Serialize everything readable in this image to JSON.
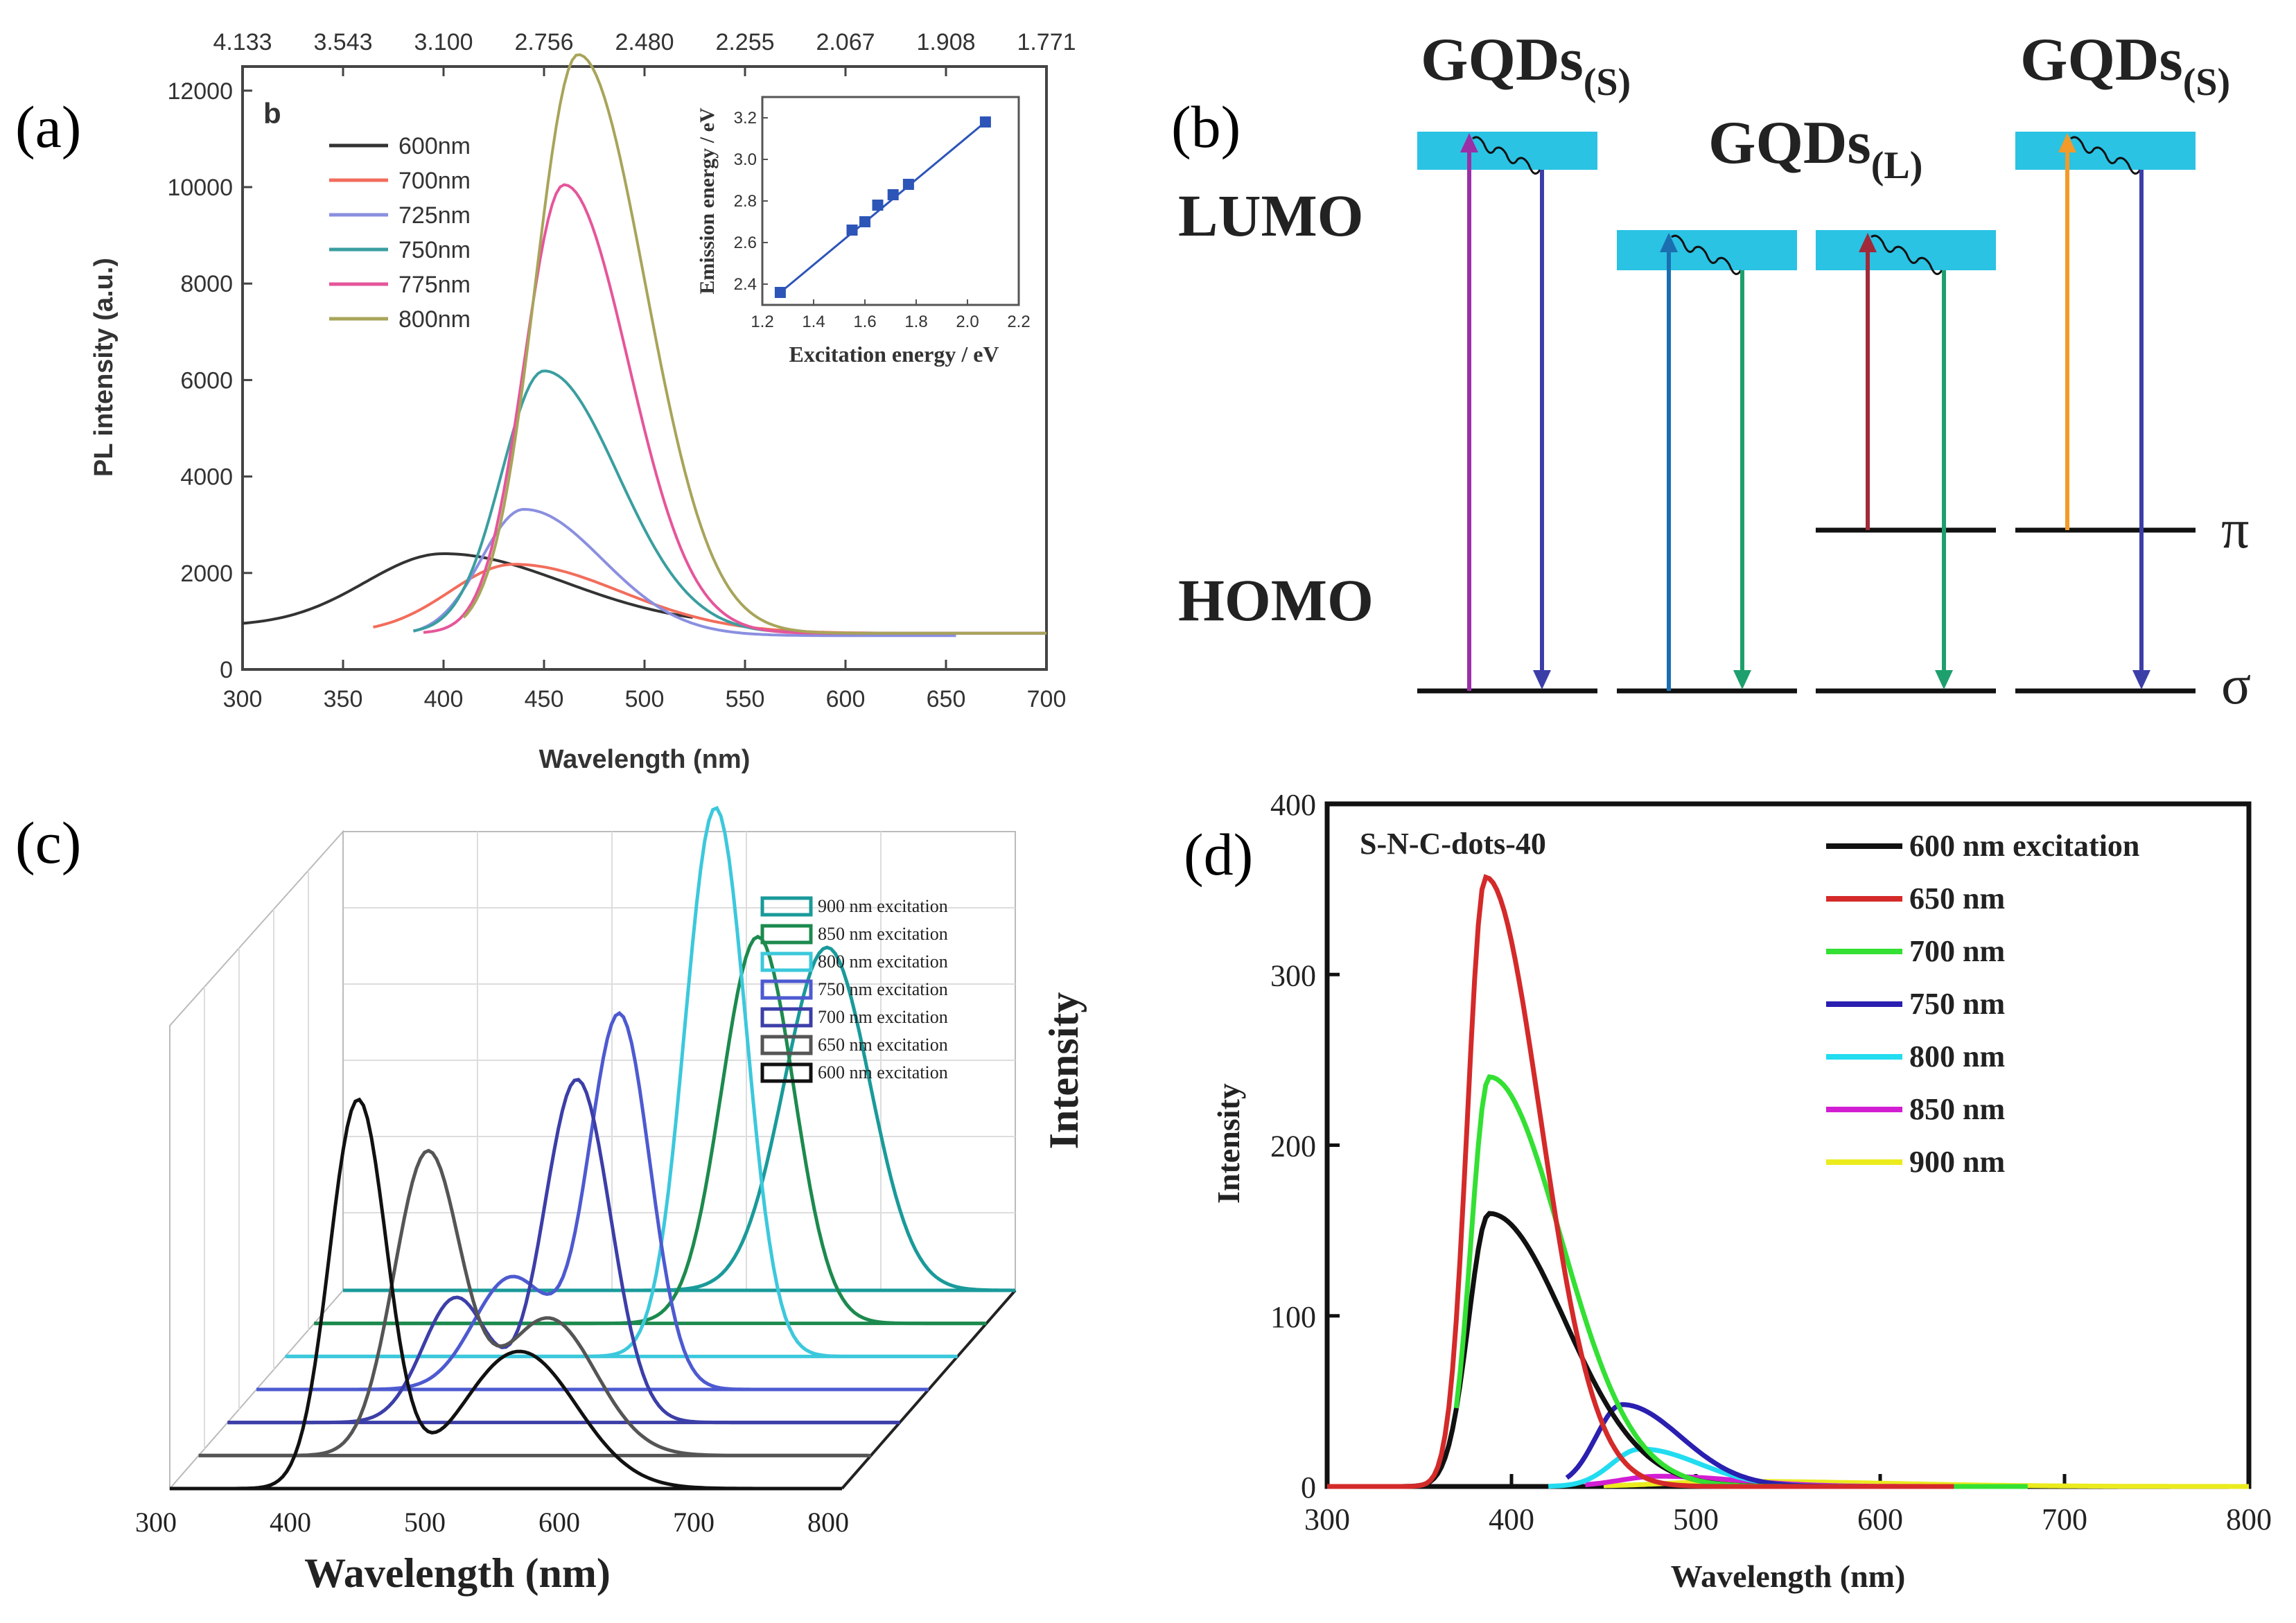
{
  "panel_labels": {
    "a": "(a)",
    "b": "(b)",
    "c": "(c)",
    "d": "(d)"
  },
  "colors": {
    "axis": "#333333",
    "cyan_band": "#2ac3e3",
    "level_line": "#111111"
  },
  "chart_data": [
    {
      "id": "a",
      "type": "line",
      "inner_label": "b",
      "xlabel": "Wavelength (nm)",
      "ylabel": "PL intensity (a.u.)",
      "xlim": [
        300,
        700
      ],
      "ylim": [
        0,
        12500
      ],
      "xticks": [
        "300",
        "350",
        "400",
        "450",
        "500",
        "550",
        "600",
        "650",
        "700"
      ],
      "yticks": [
        "0",
        "2000",
        "4000",
        "6000",
        "8000",
        "10000",
        "12000"
      ],
      "top_axis_ticks": [
        "4.133",
        "3.543",
        "3.100",
        "2.756",
        "2.480",
        "2.255",
        "2.067",
        "1.908",
        "1.771"
      ],
      "series": [
        {
          "name": "600nm",
          "color": "#333333",
          "start": 300,
          "end": 525,
          "peak": 400,
          "amp": 1500,
          "base": 900,
          "wL": 55,
          "wR": 85
        },
        {
          "name": "700nm",
          "color": "#f26d5b",
          "start": 365,
          "end": 700,
          "peak": 435,
          "amp": 1430,
          "base": 750,
          "wL": 45,
          "wR": 75
        },
        {
          "name": "725nm",
          "color": "#8b8fe0",
          "start": 385,
          "end": 655,
          "peak": 440,
          "amp": 2620,
          "base": 700,
          "wL": 30,
          "wR": 55
        },
        {
          "name": "750nm",
          "color": "#3a9ea0",
          "start": 385,
          "end": 700,
          "peak": 450,
          "amp": 5440,
          "base": 750,
          "wL": 30,
          "wR": 52
        },
        {
          "name": "775nm",
          "color": "#e6559a",
          "start": 390,
          "end": 700,
          "peak": 460,
          "amp": 9300,
          "base": 750,
          "wL": 28,
          "wR": 45
        },
        {
          "name": "800nm",
          "color": "#a8a45a",
          "start": 410,
          "end": 700,
          "peak": 467,
          "amp": 12000,
          "base": 750,
          "wL": 30,
          "wR": 47
        }
      ],
      "inset": {
        "type": "scatter",
        "xlabel": "Excitation energy / eV",
        "ylabel": "Emission energy / eV",
        "xlim": [
          1.2,
          2.2
        ],
        "ylim": [
          2.3,
          3.3
        ],
        "xticks": [
          "1.2",
          "1.4",
          "1.6",
          "1.8",
          "2.0",
          "2.2"
        ],
        "yticks": [
          "2.4",
          "2.6",
          "2.8",
          "3.0",
          "3.2"
        ],
        "x": [
          1.27,
          1.55,
          1.6,
          1.65,
          1.71,
          1.77,
          2.07
        ],
        "y": [
          2.36,
          2.66,
          2.7,
          2.78,
          2.83,
          2.88,
          3.18
        ],
        "color": "#2d55b8"
      }
    },
    {
      "id": "c",
      "type": "line",
      "subtype": "3d-waterfall",
      "xlabel": "Wavelength (nm)",
      "zlabel": "Intensity",
      "xlim": [
        300,
        800
      ],
      "xticks": [
        "300",
        "400",
        "500",
        "600",
        "700",
        "800"
      ],
      "series": [
        {
          "name": "900 nm excitation",
          "color": "#1a9a9a",
          "peaks": [
            [
              660,
              0.55,
              45
            ]
          ]
        },
        {
          "name": "850 nm excitation",
          "color": "#1c8a4e",
          "peaks": [
            [
              630,
              0.62,
              38
            ]
          ]
        },
        {
          "name": "800 nm excitation",
          "color": "#3cc8dc",
          "peaks": [
            [
              620,
              0.88,
              32
            ]
          ]
        },
        {
          "name": "750 nm excitation",
          "color": "#4d5ad0",
          "peaks": [
            [
              570,
              0.6,
              32
            ],
            [
              490,
              0.18,
              40
            ]
          ]
        },
        {
          "name": "700 nm excitation",
          "color": "#3c3ea8",
          "peaks": [
            [
              560,
              0.55,
              35
            ],
            [
              470,
              0.2,
              35
            ]
          ]
        },
        {
          "name": "650 nm excitation",
          "color": "#555555",
          "peaks": [
            [
              470,
              0.48,
              35
            ],
            [
              560,
              0.22,
              50
            ]
          ]
        },
        {
          "name": "600 nm excitation",
          "color": "#111111",
          "peaks": [
            [
              440,
              0.62,
              30
            ],
            [
              560,
              0.22,
              60
            ]
          ]
        }
      ]
    },
    {
      "id": "d",
      "type": "line",
      "title": "S-N-C-dots-40",
      "xlabel": "Wavelength (nm)",
      "ylabel": "Intensity",
      "xlim": [
        300,
        800
      ],
      "ylim": [
        0,
        400
      ],
      "xticks": [
        "300",
        "400",
        "500",
        "600",
        "700",
        "800"
      ],
      "yticks": [
        "0",
        "100",
        "200",
        "300",
        "400"
      ],
      "series": [
        {
          "name": "600 nm excitation",
          "color": "#111111",
          "start": 300,
          "end": 640,
          "peak": 388,
          "amp": 160,
          "wL": 16,
          "wR": 58
        },
        {
          "name": "650 nm",
          "color": "#d42a2a",
          "start": 300,
          "end": 640,
          "peak": 386,
          "amp": 357,
          "wL": 14,
          "wR": 42
        },
        {
          "name": "700 nm",
          "color": "#33e033",
          "start": 370,
          "end": 680,
          "peak": 388,
          "amp": 240,
          "wL": 14,
          "wR": 55
        },
        {
          "name": "750 nm",
          "color": "#2a1fb0",
          "start": 430,
          "end": 620,
          "peak": 460,
          "amp": 48,
          "wL": 20,
          "wR": 45
        },
        {
          "name": "800 nm",
          "color": "#22dcf0",
          "start": 420,
          "end": 620,
          "peak": 470,
          "amp": 22,
          "wL": 22,
          "wR": 45
        },
        {
          "name": "850 nm",
          "color": "#d21ed2",
          "start": 440,
          "end": 640,
          "peak": 480,
          "amp": 6,
          "wL": 30,
          "wR": 60
        },
        {
          "name": "900 nm",
          "color": "#ebeb1e",
          "start": 450,
          "end": 800,
          "peak": 520,
          "amp": 3,
          "wL": 50,
          "wR": 120
        }
      ]
    }
  ],
  "diagram_b": {
    "lumo": "LUMO",
    "homo": "HOMO",
    "gqds_s_left": {
      "main": "GQDs",
      "sub": "(S)"
    },
    "gqds_l": {
      "main": "GQDs",
      "sub": "(L)"
    },
    "gqds_s_right": {
      "main": "GQDs",
      "sub": "(S)"
    },
    "pi": "π",
    "sigma": "σ",
    "arrow_colors": [
      "#9b2fa8",
      "#3c3ea8",
      "#1b6fb0",
      "#1ea06e",
      "#a02a3a",
      "#1ea06e",
      "#f29a2a",
      "#3c3ea8"
    ]
  }
}
